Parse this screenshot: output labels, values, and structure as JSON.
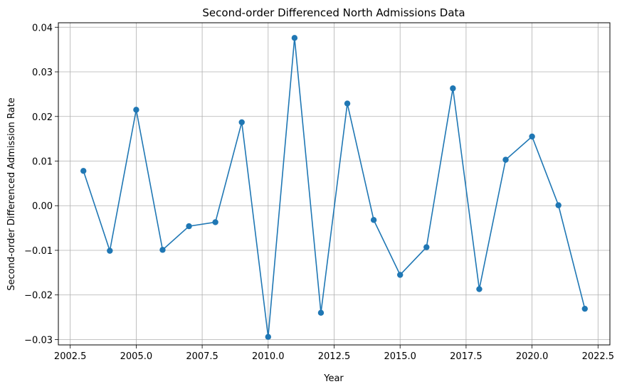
{
  "chart_data": {
    "type": "line",
    "title": "Second-order Differenced North Admissions Data",
    "xlabel": "Year",
    "ylabel": "Second-order Differenced Admission Rate",
    "xlim": [
      2002.05,
      2022.95
    ],
    "ylim": [
      -0.0312,
      0.041
    ],
    "xticks": [
      2002.5,
      2005.0,
      2007.5,
      2010.0,
      2012.5,
      2015.0,
      2017.5,
      2020.0,
      2022.5
    ],
    "xtick_labels": [
      "2002.5",
      "2005.0",
      "2007.5",
      "2010.0",
      "2012.5",
      "2015.0",
      "2017.5",
      "2020.0",
      "2022.5"
    ],
    "yticks": [
      -0.03,
      -0.02,
      -0.01,
      0.0,
      0.01,
      0.02,
      0.03,
      0.04
    ],
    "ytick_labels": [
      "−0.03",
      "−0.02",
      "−0.01",
      "0.00",
      "0.01",
      "0.02",
      "0.03",
      "0.04"
    ],
    "grid": true,
    "line_color": "#1f77b4",
    "series": [
      {
        "name": "North",
        "x": [
          2003,
          2004,
          2005,
          2006,
          2007,
          2008,
          2009,
          2010,
          2011,
          2012,
          2013,
          2014,
          2015,
          2016,
          2017,
          2018,
          2019,
          2020,
          2021,
          2022
        ],
        "values": [
          0.0078,
          -0.0101,
          0.0215,
          -0.0099,
          -0.0046,
          -0.0037,
          0.0187,
          -0.0294,
          0.0376,
          -0.024,
          0.0229,
          -0.0032,
          -0.0155,
          -0.0093,
          0.0263,
          -0.0187,
          0.0103,
          0.0155,
          0.0001,
          -0.0231
        ]
      }
    ]
  }
}
